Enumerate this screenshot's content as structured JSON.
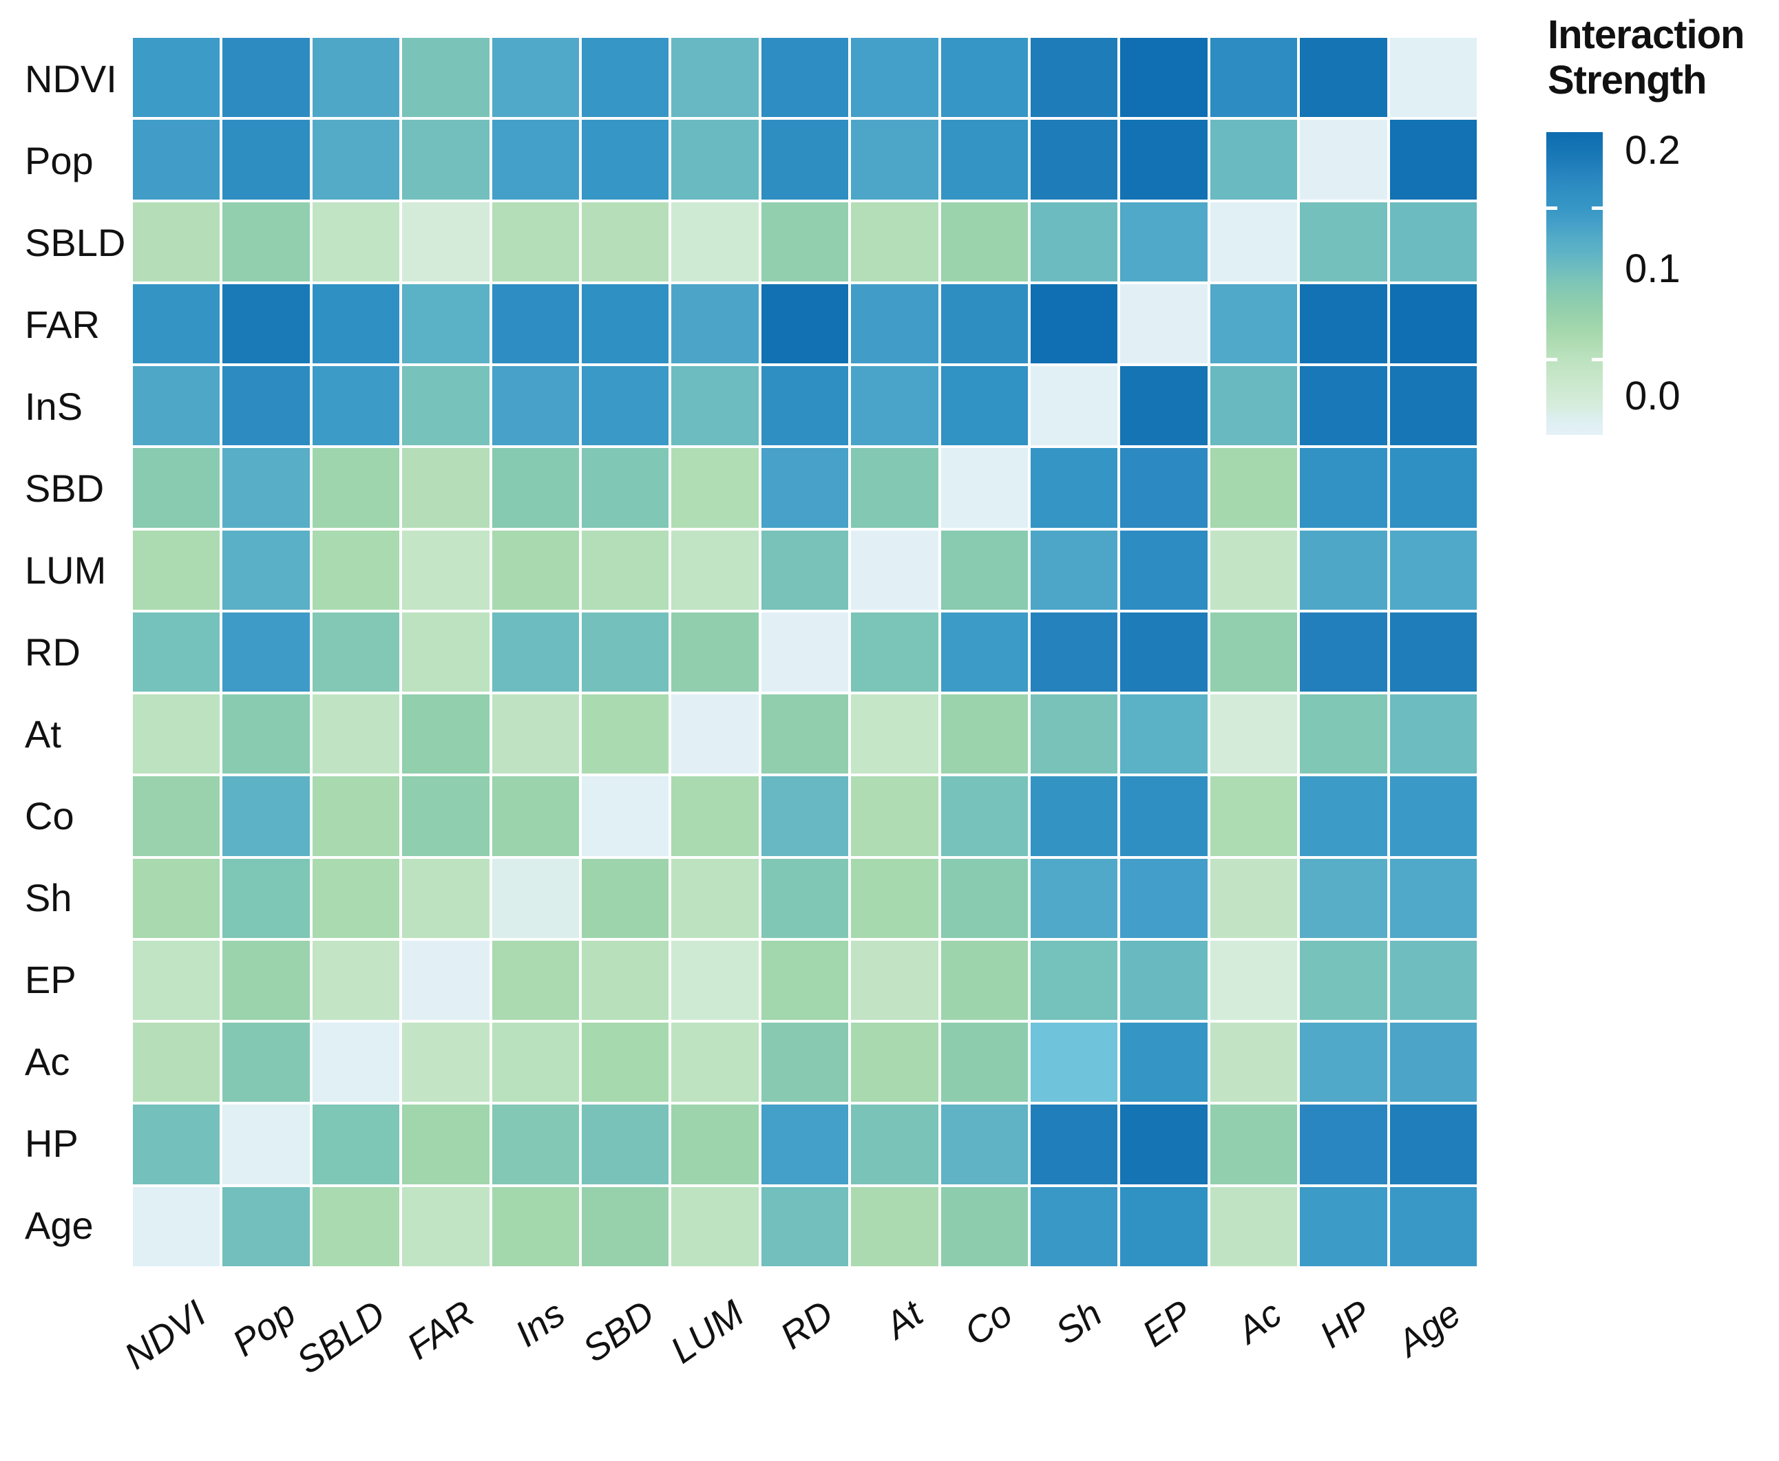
{
  "chart_data": {
    "type": "heatmap",
    "title": "",
    "rows": [
      "NDVI",
      "Pop",
      "SBLD",
      "FAR",
      "InS",
      "SBD",
      "LUM",
      "RD",
      "At",
      "Co",
      "Sh",
      "EP",
      "Ac",
      "HP",
      "Age"
    ],
    "columns": [
      "NDVI",
      "Pop",
      "SBLD",
      "FAR",
      "Ins",
      "SBD",
      "LUM",
      "RD",
      "At",
      "Co",
      "Sh",
      "EP",
      "Ac",
      "HP",
      "Age"
    ],
    "values": [
      [
        0.145,
        0.165,
        0.133,
        0.103,
        0.132,
        0.15,
        0.115,
        0.163,
        0.14,
        0.15,
        0.18,
        0.196,
        0.164,
        0.19,
        0.004
      ],
      [
        0.142,
        0.162,
        0.13,
        0.108,
        0.14,
        0.15,
        0.113,
        0.162,
        0.134,
        0.153,
        0.18,
        0.192,
        0.113,
        0.003,
        0.192
      ],
      [
        0.056,
        0.085,
        0.045,
        0.022,
        0.057,
        0.055,
        0.028,
        0.085,
        0.057,
        0.077,
        0.112,
        0.132,
        0.004,
        0.107,
        0.112
      ],
      [
        0.153,
        0.184,
        0.16,
        0.123,
        0.163,
        0.16,
        0.135,
        0.194,
        0.142,
        0.162,
        0.196,
        0.003,
        0.132,
        0.192,
        0.196
      ],
      [
        0.133,
        0.165,
        0.145,
        0.105,
        0.138,
        0.147,
        0.111,
        0.161,
        0.136,
        0.157,
        0.004,
        0.19,
        0.114,
        0.185,
        0.187
      ],
      [
        0.092,
        0.126,
        0.073,
        0.056,
        0.094,
        0.098,
        0.059,
        0.138,
        0.096,
        0.004,
        0.152,
        0.167,
        0.068,
        0.156,
        0.16
      ],
      [
        0.063,
        0.124,
        0.065,
        0.042,
        0.066,
        0.057,
        0.045,
        0.104,
        0.003,
        0.092,
        0.134,
        0.164,
        0.043,
        0.133,
        0.132
      ],
      [
        0.106,
        0.144,
        0.097,
        0.05,
        0.111,
        0.107,
        0.086,
        0.003,
        0.102,
        0.145,
        0.174,
        0.18,
        0.085,
        0.177,
        0.179
      ],
      [
        0.05,
        0.092,
        0.046,
        0.084,
        0.047,
        0.065,
        0.003,
        0.086,
        0.04,
        0.077,
        0.104,
        0.123,
        0.022,
        0.098,
        0.111
      ],
      [
        0.078,
        0.121,
        0.066,
        0.087,
        0.077,
        0.004,
        0.065,
        0.115,
        0.06,
        0.105,
        0.154,
        0.161,
        0.062,
        0.145,
        0.147
      ],
      [
        0.066,
        0.1,
        0.065,
        0.049,
        0.012,
        0.075,
        0.049,
        0.098,
        0.067,
        0.092,
        0.132,
        0.141,
        0.044,
        0.126,
        0.132
      ],
      [
        0.045,
        0.077,
        0.043,
        0.003,
        0.064,
        0.053,
        0.028,
        0.071,
        0.044,
        0.075,
        0.106,
        0.114,
        0.02,
        0.105,
        0.11
      ],
      [
        0.055,
        0.096,
        0.005,
        0.043,
        0.052,
        0.067,
        0.048,
        0.093,
        0.066,
        0.088,
        0.125,
        0.151,
        0.044,
        0.132,
        0.135
      ],
      [
        0.107,
        0.004,
        0.1,
        0.072,
        0.097,
        0.104,
        0.075,
        0.14,
        0.103,
        0.12,
        0.178,
        0.19,
        0.085,
        0.17,
        0.178
      ],
      [
        0.004,
        0.108,
        0.065,
        0.045,
        0.07,
        0.08,
        0.048,
        0.108,
        0.064,
        0.088,
        0.148,
        0.158,
        0.046,
        0.145,
        0.148
      ]
    ],
    "value_range": [
      0.0,
      0.2
    ],
    "grid_on": false,
    "colormap_stops": [
      {
        "v": 0.0,
        "hex": "#e4f1f8"
      },
      {
        "v": 0.01,
        "hex": "#ddeff0"
      },
      {
        "v": 0.02,
        "hex": "#d5ecdb"
      },
      {
        "v": 0.03,
        "hex": "#cee9d1"
      },
      {
        "v": 0.04,
        "hex": "#c6e6c8"
      },
      {
        "v": 0.05,
        "hex": "#bce2bf"
      },
      {
        "v": 0.06,
        "hex": "#b0dcb3"
      },
      {
        "v": 0.07,
        "hex": "#a3d7ac"
      },
      {
        "v": 0.08,
        "hex": "#97d1ac"
      },
      {
        "v": 0.09,
        "hex": "#8bccaf"
      },
      {
        "v": 0.1,
        "hex": "#7ec6b6"
      },
      {
        "v": 0.11,
        "hex": "#6fbdbf"
      },
      {
        "v": 0.12,
        "hex": "#5fb3c5"
      },
      {
        "v": 0.13,
        "hex": "#53abc8"
      },
      {
        "v": 0.14,
        "hex": "#449fc9"
      },
      {
        "v": 0.15,
        "hex": "#3696c5"
      },
      {
        "v": 0.16,
        "hex": "#2f90c3"
      },
      {
        "v": 0.17,
        "hex": "#2a86c0"
      },
      {
        "v": 0.18,
        "hex": "#1e7cb9"
      },
      {
        "v": 0.19,
        "hex": "#1474b4"
      },
      {
        "v": 0.2,
        "hex": "#0c6cb0"
      }
    ],
    "color_overrides": [
      {
        "row": 12,
        "col": 10,
        "hex": "#6fc3da"
      }
    ],
    "legend": {
      "position": "right",
      "title_lines": [
        "Interaction",
        "Strength"
      ],
      "ticks": [
        "0.2",
        "0.1",
        "0.0"
      ],
      "tick_values": [
        0.2,
        0.1,
        0.0
      ]
    }
  }
}
